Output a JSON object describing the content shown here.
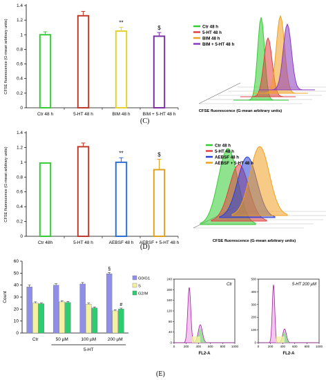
{
  "panels": {
    "C": {
      "label": "(C)",
      "chart_data": {
        "type": "bar",
        "categories": [
          "Ctr 48 h",
          "5-HT 48 h",
          "BIM 48 h",
          "BIM + 5-HT 48 h"
        ],
        "values": [
          1.0,
          1.26,
          1.05,
          0.98
        ],
        "errors": [
          0.04,
          0.06,
          0.05,
          0.05
        ],
        "annotations": [
          "",
          "",
          "**",
          "$"
        ],
        "colors": [
          "#33cc33",
          "#c0392b",
          "#e6d02c",
          "#7b2fa5"
        ],
        "ylabel": "CFSE fluorescence (G-mean arbitrary units)",
        "ylim": [
          0,
          1.4
        ],
        "yticks": [
          "0",
          "0.2",
          "0.4",
          "0.6",
          "0.8",
          "1",
          "1.2",
          "1.4"
        ]
      },
      "histogram": {
        "legend": [
          "Ctr 48 h",
          "5-HT 48 h",
          "BIM 48 h",
          "BIM + 5-HT 48 h"
        ],
        "colors": [
          "#33cc33",
          "#e04040",
          "#f0a020",
          "#8a3bbf"
        ],
        "xlabel": "CFSE fluorescence (G-mean arbitrary units)"
      }
    },
    "D": {
      "label": "(D)",
      "chart_data": {
        "type": "bar",
        "categories": [
          "Ctr 48h",
          "5-HT 48 h",
          "AEBSF 48 h",
          "AEBSF + 5-HT 48 h"
        ],
        "values": [
          0.99,
          1.21,
          1.0,
          0.9
        ],
        "errors": [
          0.0,
          0.05,
          0.06,
          0.14
        ],
        "annotations": [
          "",
          "",
          "**",
          "$"
        ],
        "colors": [
          "#33cc33",
          "#c0392b",
          "#2a6fd6",
          "#e0a020"
        ],
        "ylabel": "CFSE fluorescence (G-mean arbitrary units)",
        "ylim": [
          0,
          1.4
        ],
        "yticks": [
          "0",
          "0.2",
          "0.4",
          "0.6",
          "0.8",
          "1",
          "1.2",
          "1.4"
        ]
      },
      "histogram": {
        "legend": [
          "Ctr 48 h",
          "5-HT 48 h",
          "AEBSF 48 h",
          "AEBSF + 5-HT 48 h"
        ],
        "colors": [
          "#33cc33",
          "#e04040",
          "#2a3fd6",
          "#f0a020"
        ],
        "xlabel": "CFSE fluorescence (G-mean arbitrary units)"
      }
    },
    "E": {
      "label": "(E)",
      "chart_data": {
        "type": "bar",
        "categories": [
          "Ctr",
          "50 µM",
          "100 µM",
          "200 µM"
        ],
        "group_label": "5-HT",
        "series": [
          {
            "name": "G0/G1",
            "values": [
              38.5,
              40.0,
              41.0,
              49.5
            ],
            "errors": [
              1.5,
              1.2,
              1.2,
              1.0
            ],
            "color": "#8f8fe8"
          },
          {
            "name": "S",
            "values": [
              25.0,
              26.0,
              24.0,
              18.5
            ],
            "errors": [
              1.0,
              1.0,
              1.0,
              1.0
            ],
            "color": "#f2f2a0"
          },
          {
            "name": "G2/M",
            "values": [
              24.5,
              25.5,
              21.0,
              20.0
            ],
            "errors": [
              0.8,
              0.8,
              0.8,
              0.8
            ],
            "color": "#2ecc71"
          }
        ],
        "annotations": [
          [
            "",
            "",
            ""
          ],
          [
            "",
            "",
            ""
          ],
          [
            "",
            "",
            ""
          ],
          [
            "§",
            "",
            "#"
          ]
        ],
        "ylabel": "Count",
        "ylim": [
          0,
          60
        ],
        "yticks": [
          "0",
          "10",
          "20",
          "30",
          "40",
          "50",
          "60"
        ]
      },
      "flow": [
        {
          "title": "Ctr",
          "xlabel": "FL2-A",
          "yticks": [
            "0",
            "40",
            "80",
            "120",
            "160",
            "200",
            "240"
          ],
          "xticks": [
            "0",
            "200",
            "400",
            "600",
            "800",
            "1000"
          ]
        },
        {
          "title": "5-HT 200 µM",
          "xlabel": "FL2-A",
          "yticks": [
            "0",
            "100",
            "200",
            "300",
            "400",
            "500"
          ],
          "xticks": [
            "0",
            "200",
            "400",
            "600",
            "800",
            "1000"
          ]
        }
      ]
    }
  }
}
